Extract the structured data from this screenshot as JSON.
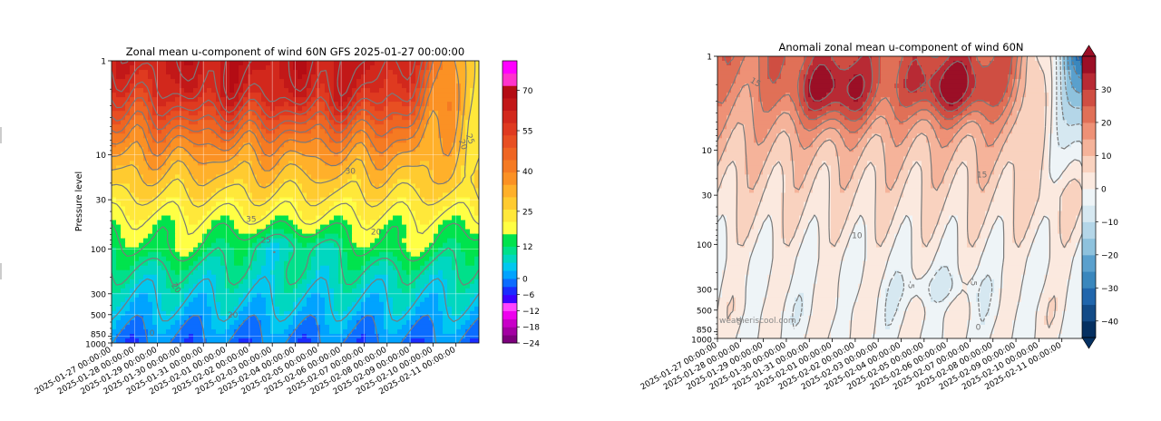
{
  "chart_data": [
    {
      "type": "heatmap",
      "title": "Zonal mean u-component of wind 60N GFS 2025-01-27 00:00:00",
      "xlabel": "",
      "ylabel": "Pressure level",
      "y_scale": "log",
      "y_inverted": true,
      "yticks": [
        1,
        10,
        30,
        100,
        300,
        500,
        850,
        1000
      ],
      "xticks": [
        "2025-01-27 00:00:00",
        "2025-01-28 00:00:00",
        "2025-01-29 00:00:00",
        "2025-01-30 00:00:00",
        "2025-01-31 00:00:00",
        "2025-02-01 00:00:00",
        "2025-02-02 00:00:00",
        "2025-02-03 00:00:00",
        "2025-02-04 00:00:00",
        "2025-02-05 00:00:00",
        "2025-02-06 00:00:00",
        "2025-02-07 00:00:00",
        "2025-02-08 00:00:00",
        "2025-02-09 00:00:00",
        "2025-02-10 00:00:00",
        "2025-02-11 00:00:00"
      ],
      "grid": true,
      "colorbar": {
        "ticks": [
          70,
          55,
          40,
          25,
          12,
          0,
          -6,
          -12,
          -18,
          -24
        ],
        "levels": [
          -24,
          -21,
          -18,
          -15,
          -12,
          -9,
          -6,
          -3,
          0,
          3,
          6,
          9,
          12,
          16.6,
          21.2,
          25.8,
          30.4,
          35,
          39.6,
          44.2,
          48.8,
          53.4,
          58,
          62.6,
          67.2,
          71.8,
          76.4,
          81
        ],
        "colors": [
          "#7d007d",
          "#a300a3",
          "#c800c8",
          "#ee00ee",
          "#ff44ff",
          "#3d00ff",
          "#1a2cff",
          "#0b6cff",
          "#00a3ff",
          "#00c8f0",
          "#00d7c0",
          "#00e08a",
          "#00e34d",
          "#ffff44",
          "#ffe83a",
          "#ffcb30",
          "#ffb02a",
          "#fb9124",
          "#f57a22",
          "#ef6522",
          "#e84f22",
          "#df3a20",
          "#d2281c",
          "#c21818",
          "#b40c14",
          "#ff33cc",
          "#ff00ff"
        ]
      },
      "contour_labels": [
        "35",
        "25",
        "20",
        "30",
        "20",
        "20",
        "25",
        "20",
        "0"
      ],
      "series_summary": {
        "levels": [
          1,
          10,
          30,
          100,
          300,
          850
        ],
        "approx_mean_values": [
          62,
          55,
          38,
          22,
          10,
          2
        ]
      }
    },
    {
      "type": "heatmap",
      "title": "Anomali zonal mean u-component of wind 60N",
      "xlabel": "",
      "ylabel": "",
      "y_scale": "log",
      "y_inverted": true,
      "yticks": [
        1,
        10,
        30,
        100,
        300,
        500,
        850,
        1000
      ],
      "xticks": [
        "2025-01-27 00:00:00",
        "2025-01-28 00:00:00",
        "2025-01-29 00:00:00",
        "2025-01-30 00:00:00",
        "2025-01-31 00:00:00",
        "2025-02-01 00:00:00",
        "2025-02-02 00:00:00",
        "2025-02-03 00:00:00",
        "2025-02-04 00:00:00",
        "2025-02-05 00:00:00",
        "2025-02-06 00:00:00",
        "2025-02-07 00:00:00",
        "2025-02-08 00:00:00",
        "2025-02-09 00:00:00",
        "2025-02-10 00:00:00",
        "2025-02-11 00:00:00"
      ],
      "grid": false,
      "colorbar": {
        "ticks": [
          30,
          20,
          10,
          0,
          -10,
          -20,
          -30,
          -40
        ],
        "levels": [
          -45,
          -40,
          -35,
          -30,
          -25,
          -20,
          -15,
          -10,
          -5,
          0,
          5,
          10,
          15,
          20,
          25,
          30,
          35,
          40
        ],
        "colors": [
          "#053061",
          "#134b87",
          "#2166ac",
          "#3a87bd",
          "#5aa0cd",
          "#8ec2dd",
          "#b4d6e8",
          "#d6e8f1",
          "#eef4f7",
          "#fbe9df",
          "#f9d2bf",
          "#f5b39a",
          "#ee9176",
          "#e07057",
          "#cf4e42",
          "#b82a34",
          "#9b0f26"
        ]
      },
      "contour_labels": [
        "10",
        "15",
        "5",
        "-5",
        "-5",
        "0",
        "35",
        "15"
      ],
      "watermark": "weatheriscool.com",
      "series_summary": {
        "levels": [
          1,
          10,
          30,
          100,
          300,
          850
        ],
        "approx_mean_values": [
          22,
          20,
          12,
          6,
          1,
          0
        ]
      }
    }
  ]
}
